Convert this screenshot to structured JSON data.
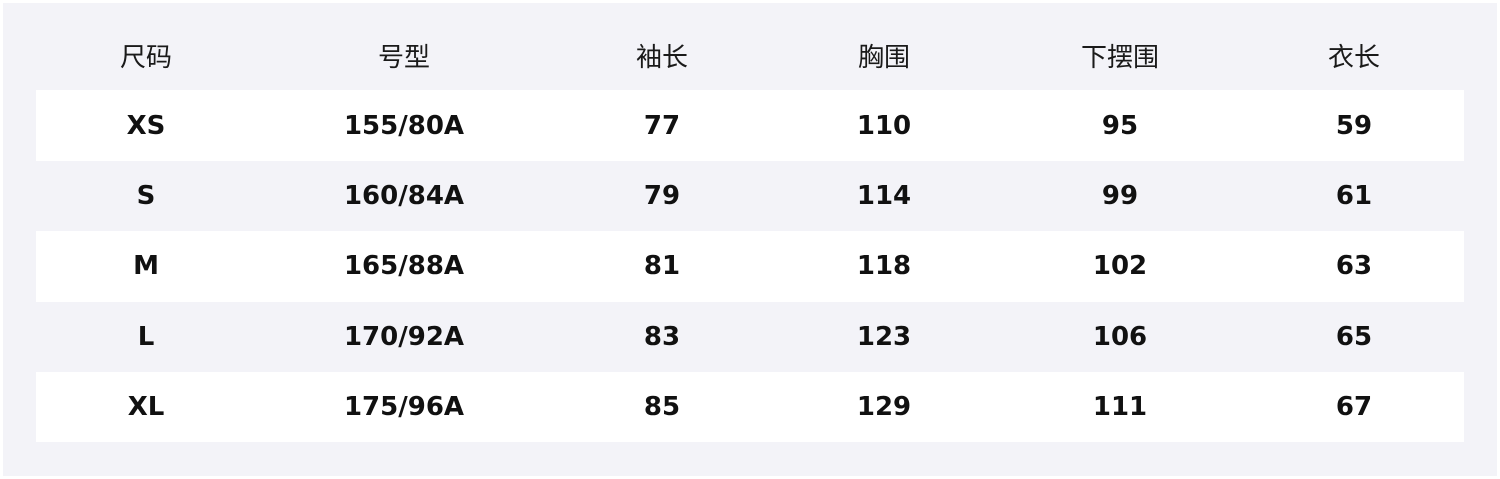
{
  "headers": [
    "尺码",
    "号型",
    "袖长",
    "胸围",
    "下摆围",
    "衣长"
  ],
  "rows": [
    [
      "XS",
      "155/80A",
      "77",
      "110",
      "95",
      "59"
    ],
    [
      "S",
      "160/84A",
      "79",
      "114",
      "99",
      "61"
    ],
    [
      "M",
      "165/88A",
      "81",
      "118",
      "102",
      "63"
    ],
    [
      "L",
      "170/92A",
      "83",
      "123",
      "106",
      "65"
    ],
    [
      "XL",
      "175/96A",
      "85",
      "129",
      "111",
      "67"
    ]
  ]
}
